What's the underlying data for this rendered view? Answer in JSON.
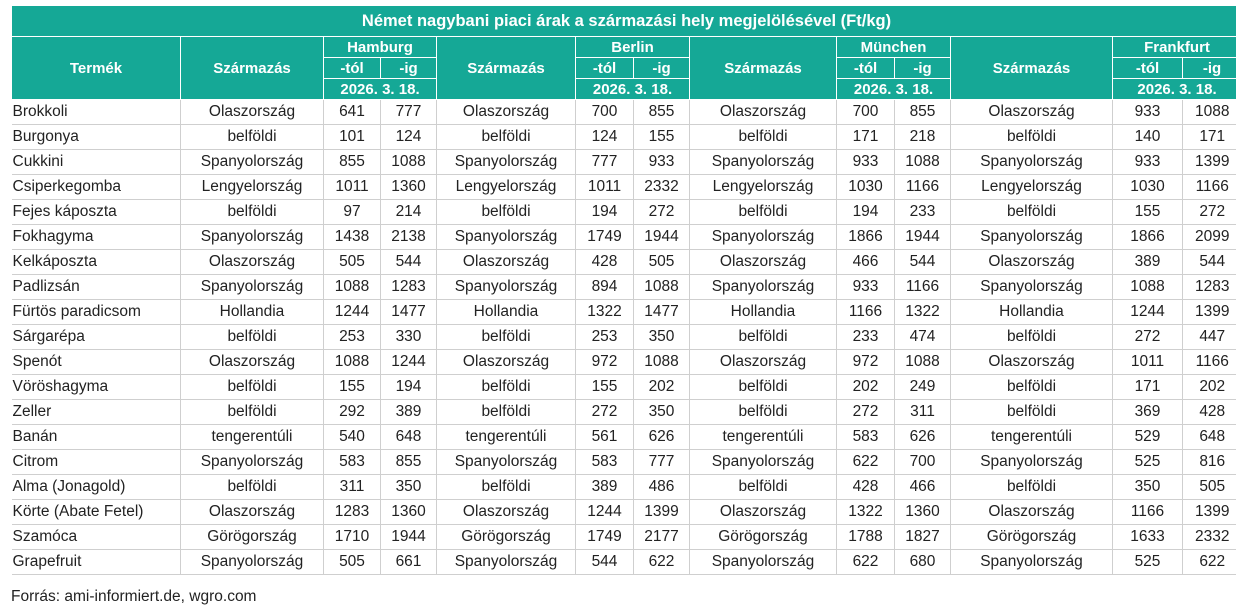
{
  "title": "Német nagybani piaci árak a származási hely megjelölésével (Ft/kg)",
  "headers": {
    "product": "Termék",
    "origin": "Származás",
    "from": "-tól",
    "to": "-ig",
    "date": "2026. 3. 18.",
    "cities": [
      "Hamburg",
      "Berlin",
      "München",
      "Frankfurt"
    ]
  },
  "rows": [
    {
      "product": "Brokkoli",
      "o": [
        "Olaszország",
        "Olaszország",
        "Olaszország",
        "Olaszország"
      ],
      "p": [
        [
          641,
          777
        ],
        [
          700,
          855
        ],
        [
          700,
          855
        ],
        [
          933,
          1088
        ]
      ]
    },
    {
      "product": "Burgonya",
      "o": [
        "belföldi",
        "belföldi",
        "belföldi",
        "belföldi"
      ],
      "p": [
        [
          101,
          124
        ],
        [
          124,
          155
        ],
        [
          171,
          218
        ],
        [
          140,
          171
        ]
      ]
    },
    {
      "product": "Cukkini",
      "o": [
        "Spanyolország",
        "Spanyolország",
        "Spanyolország",
        "Spanyolország"
      ],
      "p": [
        [
          855,
          1088
        ],
        [
          777,
          933
        ],
        [
          933,
          1088
        ],
        [
          933,
          1399
        ]
      ]
    },
    {
      "product": "Csiperkegomba",
      "o": [
        "Lengyelország",
        "Lengyelország",
        "Lengyelország",
        "Lengyelország"
      ],
      "p": [
        [
          1011,
          1360
        ],
        [
          1011,
          2332
        ],
        [
          1030,
          1166
        ],
        [
          1030,
          1166
        ]
      ]
    },
    {
      "product": "Fejes káposzta",
      "o": [
        "belföldi",
        "belföldi",
        "belföldi",
        "belföldi"
      ],
      "p": [
        [
          97,
          214
        ],
        [
          194,
          272
        ],
        [
          194,
          233
        ],
        [
          155,
          272
        ]
      ]
    },
    {
      "product": "Fokhagyma",
      "o": [
        "Spanyolország",
        "Spanyolország",
        "Spanyolország",
        "Spanyolország"
      ],
      "p": [
        [
          1438,
          2138
        ],
        [
          1749,
          1944
        ],
        [
          1866,
          1944
        ],
        [
          1866,
          2099
        ]
      ]
    },
    {
      "product": "Kelkáposzta",
      "o": [
        "Olaszország",
        "Olaszország",
        "Olaszország",
        "Olaszország"
      ],
      "p": [
        [
          505,
          544
        ],
        [
          428,
          505
        ],
        [
          466,
          544
        ],
        [
          389,
          544
        ]
      ]
    },
    {
      "product": "Padlizsán",
      "o": [
        "Spanyolország",
        "Spanyolország",
        "Spanyolország",
        "Spanyolország"
      ],
      "p": [
        [
          1088,
          1283
        ],
        [
          894,
          1088
        ],
        [
          933,
          1166
        ],
        [
          1088,
          1283
        ]
      ]
    },
    {
      "product": "Fürtös paradicsom",
      "o": [
        "Hollandia",
        "Hollandia",
        "Hollandia",
        "Hollandia"
      ],
      "p": [
        [
          1244,
          1477
        ],
        [
          1322,
          1477
        ],
        [
          1166,
          1322
        ],
        [
          1244,
          1399
        ]
      ]
    },
    {
      "product": "Sárgarépa",
      "o": [
        "belföldi",
        "belföldi",
        "belföldi",
        "belföldi"
      ],
      "p": [
        [
          253,
          330
        ],
        [
          253,
          350
        ],
        [
          233,
          474
        ],
        [
          272,
          447
        ]
      ]
    },
    {
      "product": "Spenót",
      "o": [
        "Olaszország",
        "Olaszország",
        "Olaszország",
        "Olaszország"
      ],
      "p": [
        [
          1088,
          1244
        ],
        [
          972,
          1088
        ],
        [
          972,
          1088
        ],
        [
          1011,
          1166
        ]
      ]
    },
    {
      "product": "Vöröshagyma",
      "o": [
        "belföldi",
        "belföldi",
        "belföldi",
        "belföldi"
      ],
      "p": [
        [
          155,
          194
        ],
        [
          155,
          202
        ],
        [
          202,
          249
        ],
        [
          171,
          202
        ]
      ]
    },
    {
      "product": "Zeller",
      "o": [
        "belföldi",
        "belföldi",
        "belföldi",
        "belföldi"
      ],
      "p": [
        [
          292,
          389
        ],
        [
          272,
          350
        ],
        [
          272,
          311
        ],
        [
          369,
          428
        ]
      ]
    },
    {
      "product": "Banán",
      "o": [
        "tengerentúli",
        "tengerentúli",
        "tengerentúli",
        "tengerentúli"
      ],
      "p": [
        [
          540,
          648
        ],
        [
          561,
          626
        ],
        [
          583,
          626
        ],
        [
          529,
          648
        ]
      ]
    },
    {
      "product": "Citrom",
      "o": [
        "Spanyolország",
        "Spanyolország",
        "Spanyolország",
        "Spanyolország"
      ],
      "p": [
        [
          583,
          855
        ],
        [
          583,
          777
        ],
        [
          622,
          700
        ],
        [
          525,
          816
        ]
      ]
    },
    {
      "product": "Alma (Jonagold)",
      "o": [
        "belföldi",
        "belföldi",
        "belföldi",
        "belföldi"
      ],
      "p": [
        [
          311,
          350
        ],
        [
          389,
          486
        ],
        [
          428,
          466
        ],
        [
          350,
          505
        ]
      ]
    },
    {
      "product": "Körte (Abate Fetel)",
      "o": [
        "Olaszország",
        "Olaszország",
        "Olaszország",
        "Olaszország"
      ],
      "p": [
        [
          1283,
          1360
        ],
        [
          1244,
          1399
        ],
        [
          1322,
          1360
        ],
        [
          1166,
          1399
        ]
      ]
    },
    {
      "product": "Szamóca",
      "o": [
        "Görögország",
        "Görögország",
        "Görögország",
        "Görögország"
      ],
      "p": [
        [
          1710,
          1944
        ],
        [
          1749,
          2177
        ],
        [
          1788,
          1827
        ],
        [
          1633,
          2332
        ]
      ]
    },
    {
      "product": "Grapefruit",
      "o": [
        "Spanyolország",
        "Spanyolország",
        "Spanyolország",
        "Spanyolország"
      ],
      "p": [
        [
          505,
          661
        ],
        [
          544,
          622
        ],
        [
          622,
          680
        ],
        [
          525,
          622
        ]
      ]
    }
  ],
  "source": "Forrás: ami-informiert.de, wgro.com"
}
